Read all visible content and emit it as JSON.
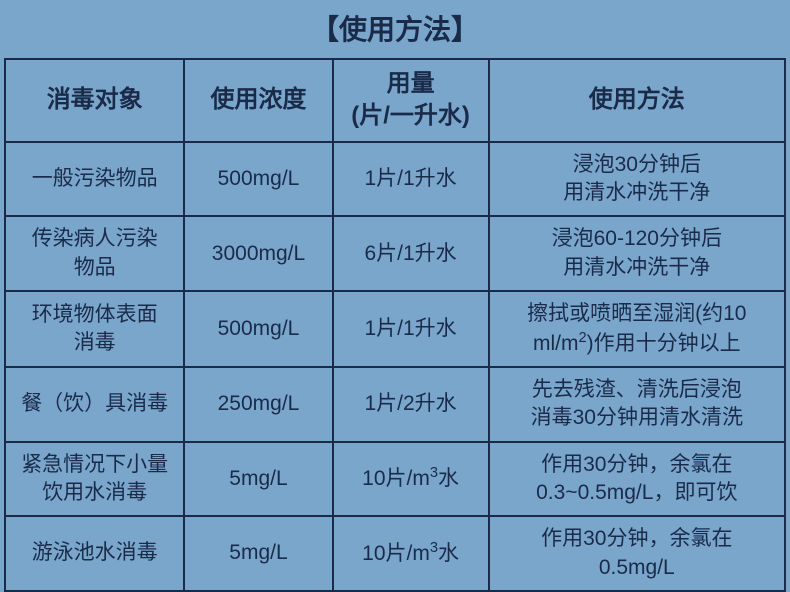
{
  "title": "【使用方法】",
  "headers": [
    "消毒对象",
    "使用浓度",
    "用量<br>(片/一升水)",
    "使用方法"
  ],
  "rows": [
    [
      "一般污染物品",
      "500mg/L",
      "1片/1升水",
      "浸泡30分钟后<br>用清水冲洗干净"
    ],
    [
      "传染病人污染<br>物品",
      "3000mg/L",
      "6片/1升水",
      "浸泡60-120分钟后<br>用清水冲洗干净"
    ],
    [
      "环境物体表面<br>消毒",
      "500mg/L",
      "1片/1升水",
      "擦拭或喷晒至湿润(约10<br>ml/m<sup>2</sup>)作用十分钟以上"
    ],
    [
      "餐（饮）具消毒",
      "250mg/L",
      "1片/2升水",
      "先去残渣、清洗后浸泡<br>消毒30分钟用清水清洗"
    ],
    [
      "紧急情况下小量<br>饮用水消毒",
      "5mg/L",
      "10片/m<sup>3</sup>水",
      "作用30分钟，余氯在<br>0.3~0.5mg/L，即可饮"
    ],
    [
      "游泳池水消毒",
      "5mg/L",
      "10片/m<sup>3</sup>水",
      "作用30分钟，余氯在<br>0.5mg/L"
    ]
  ],
  "colors": {
    "background": "#7ba6cc",
    "border": "#1a2b4a",
    "text": "#1a2b4a"
  },
  "column_widths_pct": [
    23,
    19,
    20,
    38
  ],
  "font_sizes": {
    "title": 28,
    "header": 24,
    "cell": 21
  }
}
